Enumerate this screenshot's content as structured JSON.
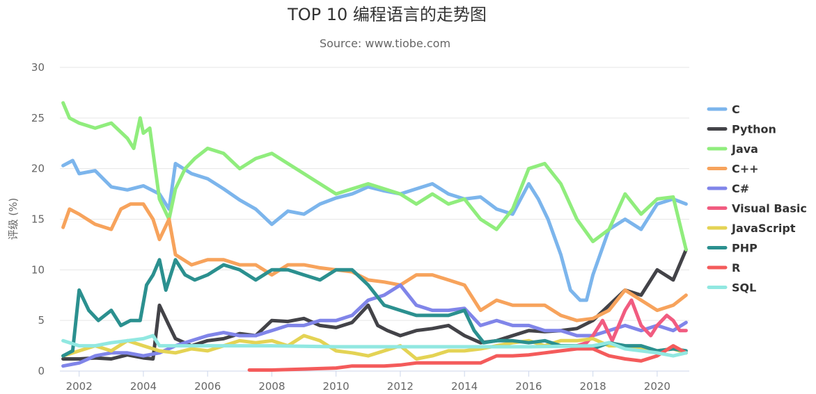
{
  "chart_data": {
    "type": "line",
    "title": "TOP 10 编程语言的走势图",
    "subtitle": "Source: www.tiobe.com",
    "ylabel": "评级 (%)",
    "xlabel": "",
    "xlim": [
      2001.4,
      2021.0
    ],
    "ylim": [
      0,
      30
    ],
    "yticks": [
      0,
      5,
      10,
      15,
      20,
      25,
      30
    ],
    "xticks": [
      2002,
      2004,
      2006,
      2008,
      2010,
      2012,
      2014,
      2016,
      2018,
      2020
    ],
    "grid": true,
    "legend_position": "right",
    "series": [
      {
        "name": "C",
        "color": "#7cb5ec",
        "x": [
          2001.5,
          2001.8,
          2002.0,
          2002.5,
          2003.0,
          2003.5,
          2004.0,
          2004.5,
          2004.8,
          2005.0,
          2005.5,
          2006.0,
          2006.5,
          2007.0,
          2007.5,
          2008.0,
          2008.5,
          2009.0,
          2009.5,
          2010.0,
          2010.5,
          2011.0,
          2011.5,
          2012.0,
          2012.5,
          2013.0,
          2013.5,
          2014.0,
          2014.5,
          2015.0,
          2015.5,
          2016.0,
          2016.3,
          2016.6,
          2017.0,
          2017.3,
          2017.6,
          2017.8,
          2018.0,
          2018.5,
          2019.0,
          2019.5,
          2020.0,
          2020.5,
          2020.9
        ],
        "y": [
          20.3,
          20.8,
          19.5,
          19.8,
          18.2,
          17.9,
          18.3,
          17.5,
          16.0,
          20.5,
          19.5,
          19.0,
          18.0,
          16.9,
          16.0,
          14.5,
          15.8,
          15.5,
          16.5,
          17.1,
          17.5,
          18.2,
          17.8,
          17.5,
          18.0,
          18.5,
          17.5,
          17.0,
          17.2,
          16.0,
          15.5,
          18.5,
          17.0,
          15.0,
          11.5,
          8.0,
          7.0,
          7.0,
          9.5,
          14.0,
          15.0,
          14.0,
          16.5,
          17.0,
          16.5
        ]
      },
      {
        "name": "Python",
        "color": "#434348",
        "x": [
          2001.5,
          2002.0,
          2002.5,
          2003.0,
          2003.5,
          2004.0,
          2004.3,
          2004.5,
          2004.8,
          2005.0,
          2005.5,
          2006.0,
          2006.5,
          2007.0,
          2007.5,
          2008.0,
          2008.5,
          2009.0,
          2009.5,
          2010.0,
          2010.5,
          2011.0,
          2011.3,
          2011.6,
          2012.0,
          2012.5,
          2013.0,
          2013.5,
          2014.0,
          2014.5,
          2015.0,
          2015.5,
          2016.0,
          2016.5,
          2017.0,
          2017.5,
          2018.0,
          2018.5,
          2019.0,
          2019.5,
          2020.0,
          2020.5,
          2020.9
        ],
        "y": [
          1.2,
          1.2,
          1.3,
          1.2,
          1.6,
          1.3,
          1.2,
          6.5,
          4.5,
          3.2,
          2.5,
          3.0,
          3.2,
          3.7,
          3.5,
          5.0,
          4.9,
          5.2,
          4.5,
          4.3,
          4.8,
          6.5,
          4.5,
          4.0,
          3.5,
          4.0,
          4.2,
          4.5,
          3.5,
          2.8,
          3.0,
          3.5,
          4.0,
          3.9,
          4.0,
          4.2,
          5.0,
          6.5,
          8.0,
          7.5,
          10.0,
          9.0,
          12.0
        ]
      },
      {
        "name": "Java",
        "color": "#90ed7d",
        "x": [
          2001.5,
          2001.7,
          2002.0,
          2002.5,
          2003.0,
          2003.5,
          2003.7,
          2003.9,
          2004.0,
          2004.2,
          2004.5,
          2004.8,
          2005.0,
          2005.3,
          2005.6,
          2006.0,
          2006.5,
          2007.0,
          2007.5,
          2008.0,
          2008.5,
          2009.0,
          2009.5,
          2010.0,
          2010.5,
          2011.0,
          2011.5,
          2012.0,
          2012.5,
          2013.0,
          2013.5,
          2014.0,
          2014.5,
          2015.0,
          2015.5,
          2016.0,
          2016.5,
          2017.0,
          2017.5,
          2018.0,
          2018.5,
          2019.0,
          2019.5,
          2020.0,
          2020.5,
          2020.9
        ],
        "y": [
          26.5,
          25.0,
          24.5,
          24.0,
          24.5,
          23.0,
          22.0,
          25.0,
          23.5,
          24.0,
          17.0,
          15.0,
          18.0,
          20.0,
          21.0,
          22.0,
          21.5,
          20.0,
          21.0,
          21.5,
          20.5,
          19.5,
          18.5,
          17.5,
          18.0,
          18.5,
          18.0,
          17.5,
          16.5,
          17.5,
          16.5,
          17.0,
          15.0,
          14.0,
          16.0,
          20.0,
          20.5,
          18.5,
          15.0,
          12.8,
          14.0,
          17.5,
          15.5,
          17.0,
          17.2,
          12.0
        ]
      },
      {
        "name": "C++",
        "color": "#f7a35c",
        "x": [
          2001.5,
          2001.7,
          2002.0,
          2002.5,
          2003.0,
          2003.3,
          2003.6,
          2004.0,
          2004.3,
          2004.5,
          2004.8,
          2005.0,
          2005.5,
          2006.0,
          2006.5,
          2007.0,
          2007.5,
          2008.0,
          2008.5,
          2009.0,
          2009.5,
          2010.0,
          2010.5,
          2011.0,
          2011.5,
          2012.0,
          2012.5,
          2013.0,
          2013.5,
          2014.0,
          2014.5,
          2015.0,
          2015.5,
          2016.0,
          2016.5,
          2017.0,
          2017.5,
          2018.0,
          2018.5,
          2019.0,
          2019.5,
          2020.0,
          2020.5,
          2020.9
        ],
        "y": [
          14.2,
          16.0,
          15.5,
          14.5,
          14.0,
          16.0,
          16.5,
          16.5,
          15.0,
          13.0,
          15.0,
          11.5,
          10.5,
          11.0,
          11.0,
          10.5,
          10.5,
          9.5,
          10.5,
          10.5,
          10.2,
          10.0,
          9.8,
          9.0,
          8.8,
          8.5,
          9.5,
          9.5,
          9.0,
          8.5,
          6.0,
          7.0,
          6.5,
          6.5,
          6.5,
          5.5,
          5.0,
          5.2,
          6.0,
          8.0,
          7.0,
          6.0,
          6.5,
          7.5
        ]
      },
      {
        "name": "C#",
        "color": "#8085e9",
        "x": [
          2001.5,
          2002.0,
          2002.5,
          2003.0,
          2003.5,
          2004.0,
          2004.5,
          2005.0,
          2005.5,
          2006.0,
          2006.5,
          2007.0,
          2007.5,
          2008.0,
          2008.5,
          2009.0,
          2009.5,
          2010.0,
          2010.5,
          2011.0,
          2011.5,
          2012.0,
          2012.5,
          2013.0,
          2013.5,
          2014.0,
          2014.5,
          2015.0,
          2015.5,
          2016.0,
          2016.5,
          2017.0,
          2017.5,
          2018.0,
          2018.5,
          2019.0,
          2019.5,
          2020.0,
          2020.5,
          2020.9
        ],
        "y": [
          0.5,
          0.8,
          1.5,
          1.8,
          1.8,
          1.5,
          1.8,
          2.5,
          3.0,
          3.5,
          3.8,
          3.5,
          3.5,
          4.0,
          4.5,
          4.5,
          5.0,
          5.0,
          5.5,
          7.0,
          7.5,
          8.5,
          6.5,
          6.0,
          6.0,
          6.2,
          4.5,
          5.0,
          4.5,
          4.5,
          4.0,
          4.0,
          3.5,
          3.5,
          4.0,
          4.5,
          4.0,
          4.5,
          4.0,
          4.8
        ]
      },
      {
        "name": "Visual Basic",
        "color": "#f15c80",
        "x": [
          2017.5,
          2017.8,
          2018.0,
          2018.3,
          2018.6,
          2019.0,
          2019.2,
          2019.5,
          2019.8,
          2020.0,
          2020.3,
          2020.5,
          2020.7,
          2020.9
        ],
        "y": [
          2.5,
          2.8,
          3.5,
          5.0,
          3.0,
          6.0,
          7.0,
          4.5,
          3.5,
          4.5,
          5.5,
          5.0,
          4.0,
          4.0
        ]
      },
      {
        "name": "JavaScript",
        "color": "#e4d354",
        "x": [
          2001.5,
          2002.0,
          2002.5,
          2003.0,
          2003.5,
          2004.0,
          2004.5,
          2005.0,
          2005.5,
          2006.0,
          2006.5,
          2007.0,
          2007.5,
          2008.0,
          2008.5,
          2009.0,
          2009.5,
          2010.0,
          2010.5,
          2011.0,
          2011.5,
          2012.0,
          2012.5,
          2013.0,
          2013.5,
          2014.0,
          2014.5,
          2015.0,
          2015.5,
          2016.0,
          2016.5,
          2017.0,
          2017.5,
          2018.0,
          2018.5,
          2019.0,
          2019.5,
          2020.0,
          2020.5,
          2020.9
        ],
        "y": [
          1.5,
          2.0,
          2.5,
          2.0,
          3.0,
          2.5,
          2.0,
          1.8,
          2.2,
          2.0,
          2.5,
          3.0,
          2.8,
          3.0,
          2.5,
          3.5,
          3.0,
          2.0,
          1.8,
          1.5,
          2.0,
          2.5,
          1.2,
          1.5,
          2.0,
          2.0,
          2.2,
          2.5,
          2.8,
          3.0,
          2.5,
          3.0,
          3.0,
          3.2,
          2.5,
          2.5,
          2.2,
          2.0,
          2.2,
          1.8
        ]
      },
      {
        "name": "PHP",
        "color": "#2b908f",
        "x": [
          2001.5,
          2001.8,
          2002.0,
          2002.3,
          2002.6,
          2003.0,
          2003.3,
          2003.6,
          2003.9,
          2004.1,
          2004.3,
          2004.5,
          2004.7,
          2005.0,
          2005.3,
          2005.6,
          2006.0,
          2006.5,
          2007.0,
          2007.5,
          2008.0,
          2008.5,
          2009.0,
          2009.5,
          2010.0,
          2010.5,
          2011.0,
          2011.5,
          2012.0,
          2012.5,
          2013.0,
          2013.5,
          2014.0,
          2014.3,
          2014.6,
          2015.0,
          2015.5,
          2016.0,
          2016.5,
          2017.0,
          2017.5,
          2018.0,
          2018.5,
          2019.0,
          2019.5,
          2020.0,
          2020.5,
          2020.9
        ],
        "y": [
          1.5,
          2.0,
          8.0,
          6.0,
          5.0,
          6.0,
          4.5,
          5.0,
          5.0,
          8.5,
          9.5,
          11.0,
          8.0,
          11.0,
          9.5,
          9.0,
          9.5,
          10.5,
          10.0,
          9.0,
          10.0,
          10.0,
          9.5,
          9.0,
          10.0,
          10.0,
          8.5,
          6.5,
          6.0,
          5.5,
          5.5,
          5.5,
          6.0,
          4.0,
          2.8,
          3.0,
          3.0,
          2.8,
          3.0,
          2.5,
          2.5,
          2.2,
          2.8,
          2.5,
          2.5,
          2.0,
          2.2,
          2.0
        ]
      },
      {
        "name": "R",
        "color": "#f45b5b",
        "x": [
          2007.3,
          2008.0,
          2009.0,
          2010.0,
          2010.5,
          2011.0,
          2011.5,
          2012.0,
          2012.5,
          2013.0,
          2013.5,
          2014.0,
          2014.5,
          2015.0,
          2015.5,
          2016.0,
          2016.5,
          2017.0,
          2017.5,
          2018.0,
          2018.5,
          2019.0,
          2019.5,
          2020.0,
          2020.5,
          2020.9
        ],
        "y": [
          0.1,
          0.1,
          0.2,
          0.3,
          0.5,
          0.5,
          0.5,
          0.6,
          0.8,
          0.8,
          0.8,
          0.8,
          0.8,
          1.5,
          1.5,
          1.6,
          1.8,
          2.0,
          2.2,
          2.2,
          1.5,
          1.2,
          1.0,
          1.5,
          2.5,
          1.8
        ]
      },
      {
        "name": "SQL",
        "color": "#91e8e1",
        "x": [
          2001.5,
          2002.0,
          2002.5,
          2003.0,
          2003.5,
          2004.0,
          2004.3,
          2004.5,
          2005.0,
          2006.0,
          2008.0,
          2010.0,
          2012.0,
          2014.0,
          2016.0,
          2018.0,
          2018.5,
          2019.0,
          2019.5,
          2020.0,
          2020.5,
          2020.9
        ],
        "y": [
          3.0,
          2.5,
          2.5,
          2.8,
          3.0,
          3.2,
          3.5,
          2.5,
          2.5,
          2.5,
          2.5,
          2.4,
          2.4,
          2.4,
          2.4,
          2.5,
          2.8,
          2.2,
          2.0,
          1.8,
          1.5,
          1.8
        ]
      }
    ]
  }
}
